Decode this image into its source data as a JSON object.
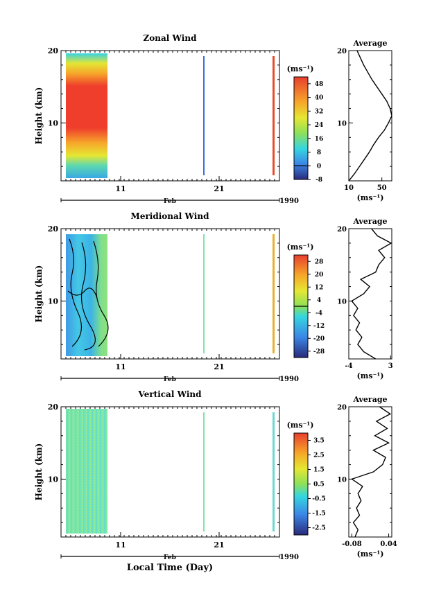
{
  "figure": {
    "time_axis_year": "1990",
    "time_axis_xlabel": "Local Time (Day)"
  },
  "chart_data": [
    {
      "type": "heatmap",
      "title": "Zonal Wind",
      "ylabel": "Height (km)",
      "yticks": [
        "20",
        "10"
      ],
      "ylim": [
        2,
        20
      ],
      "xticks": [
        "11",
        "21"
      ],
      "xlabel": "Feb",
      "colorbar_unit": "(ms⁻¹)",
      "colorbar_ticks": [
        "48",
        "40",
        "32",
        "24",
        "16",
        "8",
        "0",
        "-8"
      ],
      "colorbar_range": [
        -8,
        52
      ],
      "colorbar_divider": 0,
      "field_description": "strong westerly jet core (>48) near 8-16 km, weaker (<16) near 2-5 km",
      "average_profile": {
        "title": "Average",
        "xticks": [
          "10",
          "50"
        ],
        "xlim": [
          10,
          62
        ],
        "xlabel": "(ms⁻¹)",
        "yticks": [
          "20",
          "10"
        ],
        "height_km": [
          2,
          3,
          4,
          5,
          6,
          7,
          8,
          9,
          10,
          11,
          12,
          13,
          14,
          15,
          16,
          17,
          18,
          19,
          20
        ],
        "values": [
          10,
          17,
          23,
          29,
          35,
          40,
          46,
          53,
          58,
          62,
          60,
          56,
          50,
          44,
          38,
          33,
          28,
          24,
          20
        ]
      }
    },
    {
      "type": "heatmap",
      "title": "Meridional Wind",
      "ylabel": "Height (km)",
      "yticks": [
        "20",
        "10"
      ],
      "ylim": [
        2,
        20
      ],
      "xticks": [
        "11",
        "21"
      ],
      "xlabel": "Feb",
      "colorbar_unit": "(ms⁻¹)",
      "colorbar_ticks": [
        "28",
        "20",
        "12",
        "4",
        "-4",
        "-12",
        "-20",
        "-28"
      ],
      "colorbar_range": [
        -32,
        32
      ],
      "colorbar_divider": 0,
      "field_description": "mostly weak southerly/northerly (-12 to 4) with black zero contours",
      "average_profile": {
        "title": "Average",
        "xticks": [
          "-4",
          "3"
        ],
        "xlim": [
          -4,
          3.2
        ],
        "xlabel": "(ms⁻¹)",
        "yticks": [
          "20",
          "10"
        ],
        "height_km": [
          2,
          3,
          4,
          5,
          6,
          7,
          8,
          9,
          10,
          11,
          12,
          13,
          14,
          15,
          16,
          17,
          18,
          19,
          20
        ],
        "values": [
          0.5,
          -1.5,
          -2.5,
          -1.8,
          -2.8,
          -2.2,
          -3.2,
          -2.5,
          -3.5,
          -1.5,
          -0.5,
          -2.0,
          0.5,
          1.0,
          2.0,
          1.0,
          3.1,
          0.8,
          -0.2
        ]
      }
    },
    {
      "type": "heatmap",
      "title": "Vertical Wind",
      "ylabel": "Height (km)",
      "yticks": [
        "20",
        "10"
      ],
      "ylim": [
        2,
        20
      ],
      "xticks": [
        "11",
        "21"
      ],
      "xlabel": "Feb",
      "colorbar_unit": "(ms⁻¹)",
      "colorbar_ticks": [
        "3.5",
        "2.5",
        "1.5",
        "0.5",
        "-0.5",
        "-1.5",
        "-2.5"
      ],
      "colorbar_range": [
        -3.0,
        4.0
      ],
      "colorbar_divider": null,
      "field_description": "near-zero vertical velocity (-0.5 to 0.5) throughout",
      "average_profile": {
        "title": "Average",
        "xticks": [
          "-0.08",
          "0.04"
        ],
        "xlim": [
          -0.09,
          0.05
        ],
        "xlabel": "(ms⁻¹)",
        "yticks": [
          "20",
          "10"
        ],
        "height_km": [
          2,
          3,
          4,
          5,
          6,
          7,
          8,
          9,
          10,
          11,
          12,
          13,
          14,
          15,
          16,
          17,
          18,
          19,
          20
        ],
        "values": [
          -0.07,
          -0.06,
          -0.075,
          -0.055,
          -0.065,
          -0.05,
          -0.06,
          -0.045,
          -0.08,
          -0.01,
          0.02,
          0.03,
          -0.01,
          0.04,
          -0.005,
          0.035,
          0.0,
          0.045,
          0.01
        ]
      }
    }
  ]
}
